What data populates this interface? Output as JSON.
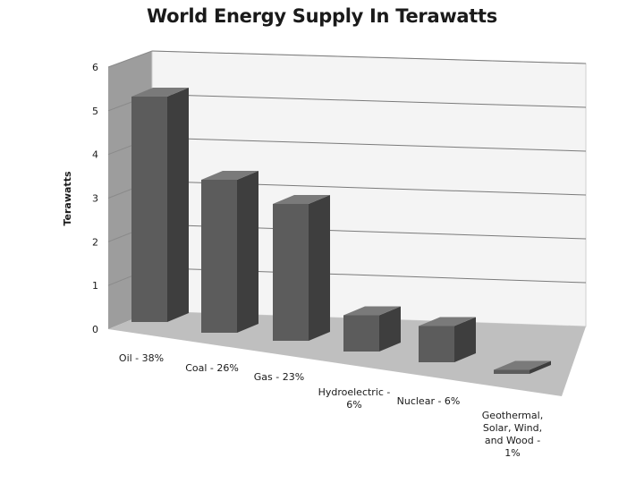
{
  "chart_data": {
    "type": "bar",
    "title": "World Energy Supply In Terawatts",
    "xlabel": "",
    "ylabel": "Terawatts",
    "ylim": [
      0,
      6
    ],
    "yticks": [
      "0",
      "1",
      "2",
      "3",
      "4",
      "5",
      "6"
    ],
    "grid": true,
    "legend": "none",
    "categories": [
      "Oil - 38%",
      "Coal - 26%",
      "Gas - 23%",
      "Hydroelectric - 6%",
      "Nuclear - 6%",
      "Geothermal, Solar, Wind, and Wood - 1%"
    ],
    "category_lines": [
      [
        "Oil - 38%"
      ],
      [
        "Coal - 26%"
      ],
      [
        "Gas - 23%"
      ],
      [
        "Hydroelectric -",
        "6%"
      ],
      [
        "Nuclear - 6%"
      ],
      [
        "Geothermal,",
        "Solar, Wind,",
        "and Wood -",
        "1%"
      ]
    ],
    "values": [
      5.6,
      3.8,
      3.4,
      0.9,
      0.9,
      0.1
    ],
    "colors": {
      "bar_front": "#5c5c5c",
      "bar_top": "#7a7a7a",
      "bar_side": "#3e3e3e",
      "back_wall": "#f4f4f4",
      "side_wall": "#9d9d9d",
      "floor": "#bfbfbf",
      "grid": "#7a7a7a"
    }
  }
}
